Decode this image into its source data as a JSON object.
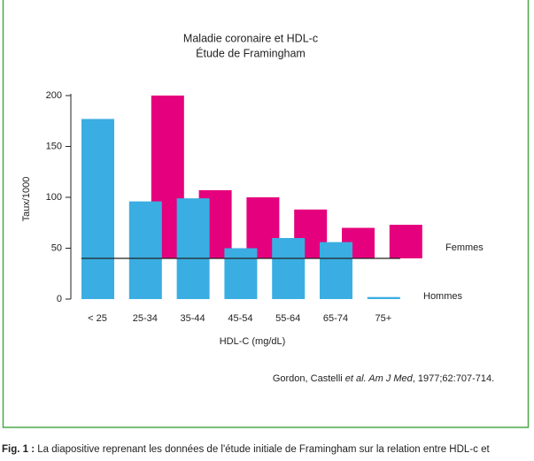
{
  "chart_data": {
    "type": "bar",
    "title": "Maladie coronaire et HDL-c",
    "subtitle": "Étude de Framingham",
    "y_label": "Taux/1000",
    "x_label": "HDL-C (mg/dL)",
    "categories": [
      "< 25",
      "25-34",
      "35-44",
      "45-54",
      "55-64",
      "65-74",
      "75+"
    ],
    "series": [
      {
        "name": "Femmes",
        "color": "#e5007d",
        "baseline": 40,
        "values": [
          null,
          200,
          107,
          100,
          88,
          70,
          73
        ]
      },
      {
        "name": "Hommes",
        "color": "#3aaee2",
        "values": [
          177,
          96,
          99,
          50,
          60,
          56,
          2
        ]
      }
    ],
    "ylim": [
      0,
      200
    ],
    "yticks": [
      0,
      50,
      100,
      150,
      200
    ],
    "citation": [
      "Gordon, Castelli ",
      "et al. Am J Med",
      ", 1977;62:707-714."
    ]
  },
  "caption": {
    "label": "Fig. 1 :",
    "text": " La diapositive reprenant les données de l'étude initiale de Framingham sur la relation entre HDL-c et"
  }
}
